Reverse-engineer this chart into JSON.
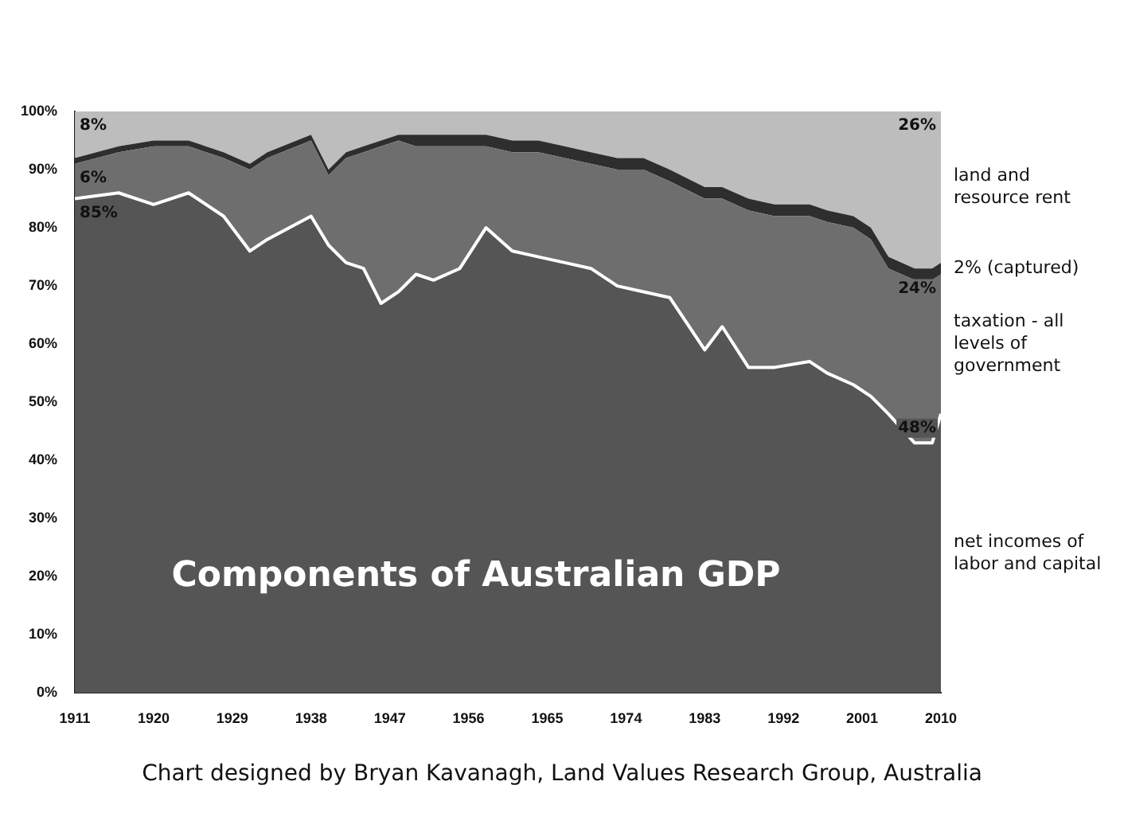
{
  "chart_data": {
    "type": "area",
    "title": "Components of Australian GDP",
    "stacked": true,
    "x": [
      1911,
      1916,
      1920,
      1924,
      1928,
      1931,
      1933,
      1938,
      1940,
      1942,
      1944,
      1946,
      1948,
      1950,
      1952,
      1955,
      1958,
      1961,
      1964,
      1967,
      1970,
      1973,
      1976,
      1979,
      1983,
      1985,
      1988,
      1991,
      1995,
      1997,
      2000,
      2002,
      2004,
      2007,
      2009,
      2010
    ],
    "series": [
      {
        "name": "net incomes of labor and capital",
        "color": "#555555",
        "values": [
          85,
          86,
          84,
          86,
          82,
          76,
          78,
          82,
          77,
          74,
          73,
          67,
          69,
          72,
          71,
          73,
          80,
          76,
          75,
          74,
          73,
          70,
          69,
          68,
          59,
          63,
          56,
          56,
          57,
          55,
          53,
          51,
          48,
          43,
          43,
          48
        ],
        "value_labels": [
          "85%",
          null,
          null,
          null,
          null,
          null,
          null,
          null,
          null,
          null,
          null,
          null,
          null,
          null,
          null,
          null,
          null,
          null,
          null,
          null,
          null,
          null,
          null,
          null,
          null,
          null,
          null,
          null,
          null,
          null,
          null,
          null,
          null,
          null,
          null,
          "48%"
        ]
      },
      {
        "name": "taxation - all levels of government",
        "color": "#6e6e6e",
        "values": [
          6,
          7,
          10,
          8,
          10,
          14,
          14,
          13,
          12,
          18,
          20,
          27,
          26,
          22,
          23,
          21,
          14,
          17,
          18,
          18,
          18,
          20,
          21,
          20,
          26,
          22,
          27,
          26,
          25,
          26,
          27,
          27,
          25,
          28,
          28,
          24
        ],
        "value_labels": [
          "6%",
          null,
          null,
          null,
          null,
          null,
          null,
          null,
          null,
          null,
          null,
          null,
          null,
          null,
          null,
          null,
          null,
          null,
          null,
          null,
          null,
          null,
          null,
          null,
          null,
          null,
          null,
          null,
          null,
          null,
          null,
          null,
          null,
          null,
          null,
          "24%"
        ]
      },
      {
        "name": "2% (captured)",
        "color": "#2e2e2e",
        "values": [
          1,
          1,
          1,
          1,
          1,
          1,
          1,
          1,
          1,
          1,
          1,
          1,
          1,
          2,
          2,
          2,
          2,
          2,
          2,
          2,
          2,
          2,
          2,
          2,
          2,
          2,
          2,
          2,
          2,
          2,
          2,
          2,
          2,
          2,
          2,
          2
        ]
      },
      {
        "name": "land and resource rent",
        "color": "#bdbdbd",
        "values": [
          8,
          6,
          5,
          5,
          7,
          9,
          7,
          4,
          10,
          7,
          6,
          5,
          4,
          4,
          4,
          4,
          4,
          5,
          5,
          6,
          7,
          8,
          8,
          10,
          13,
          13,
          15,
          16,
          16,
          17,
          18,
          20,
          25,
          27,
          27,
          26
        ],
        "value_labels": [
          "8%",
          null,
          null,
          null,
          null,
          null,
          null,
          null,
          null,
          null,
          null,
          null,
          null,
          null,
          null,
          null,
          null,
          null,
          null,
          null,
          null,
          null,
          null,
          null,
          null,
          null,
          null,
          null,
          null,
          null,
          null,
          null,
          null,
          null,
          null,
          "26%"
        ]
      }
    ],
    "xlim": [
      1911,
      2010
    ],
    "xticks": [
      1911,
      1920,
      1929,
      1938,
      1947,
      1956,
      1965,
      1974,
      1983,
      1992,
      2001,
      2010
    ],
    "ylim": [
      0,
      100
    ],
    "yticks": [
      {
        "value": 0,
        "label": "0%"
      },
      {
        "value": 10,
        "label": "10%"
      },
      {
        "value": 20,
        "label": "20%"
      },
      {
        "value": 30,
        "label": "30%"
      },
      {
        "value": 40,
        "label": "40%"
      },
      {
        "value": 50,
        "label": "50%"
      },
      {
        "value": 60,
        "label": "60%"
      },
      {
        "value": 70,
        "label": "70%"
      },
      {
        "value": 80,
        "label": "80%"
      },
      {
        "value": 90,
        "label": "90%"
      },
      {
        "value": 100,
        "label": "100%"
      }
    ],
    "annotations": [
      "Chart designed by Bryan Kavanagh, Land Values Research Group, Australia"
    ]
  }
}
